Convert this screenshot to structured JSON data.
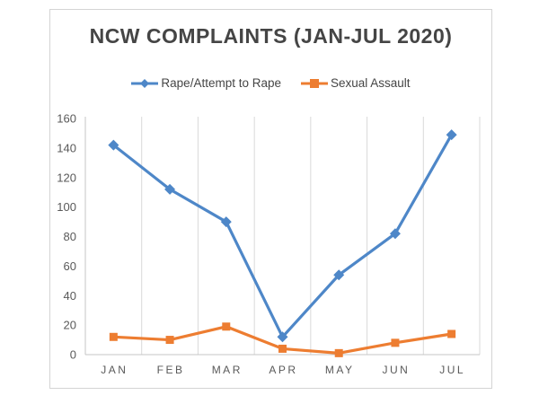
{
  "window": {
    "background_color": "#ffffff",
    "frame_border_color": "#d4d4d4"
  },
  "chart_data": {
    "type": "line",
    "title": "NCW COMPLAINTS (JAN-JUL 2020)",
    "xlabel": "",
    "ylabel": "",
    "categories": [
      "JAN",
      "FEB",
      "MAR",
      "APR",
      "MAY",
      "JUN",
      "JUL"
    ],
    "series": [
      {
        "name": "Rape/Attempt to Rape",
        "color": "#4E87C8",
        "marker": "diamond",
        "values": [
          142,
          112,
          90,
          12,
          54,
          82,
          149
        ]
      },
      {
        "name": "Sexual Assault",
        "color": "#ED7D31",
        "marker": "square",
        "values": [
          12,
          10,
          19,
          4,
          1,
          8,
          14
        ]
      }
    ],
    "ylim": [
      0,
      160
    ],
    "yticks": [
      0,
      20,
      40,
      60,
      80,
      100,
      120,
      140,
      160
    ],
    "grid": "vertical-only",
    "legend_position": "top",
    "gridline_color": "#d9d9d9",
    "axis_line_color": "#c6c6c6",
    "tick_label_color": "#595959",
    "title_color": "#454545"
  }
}
